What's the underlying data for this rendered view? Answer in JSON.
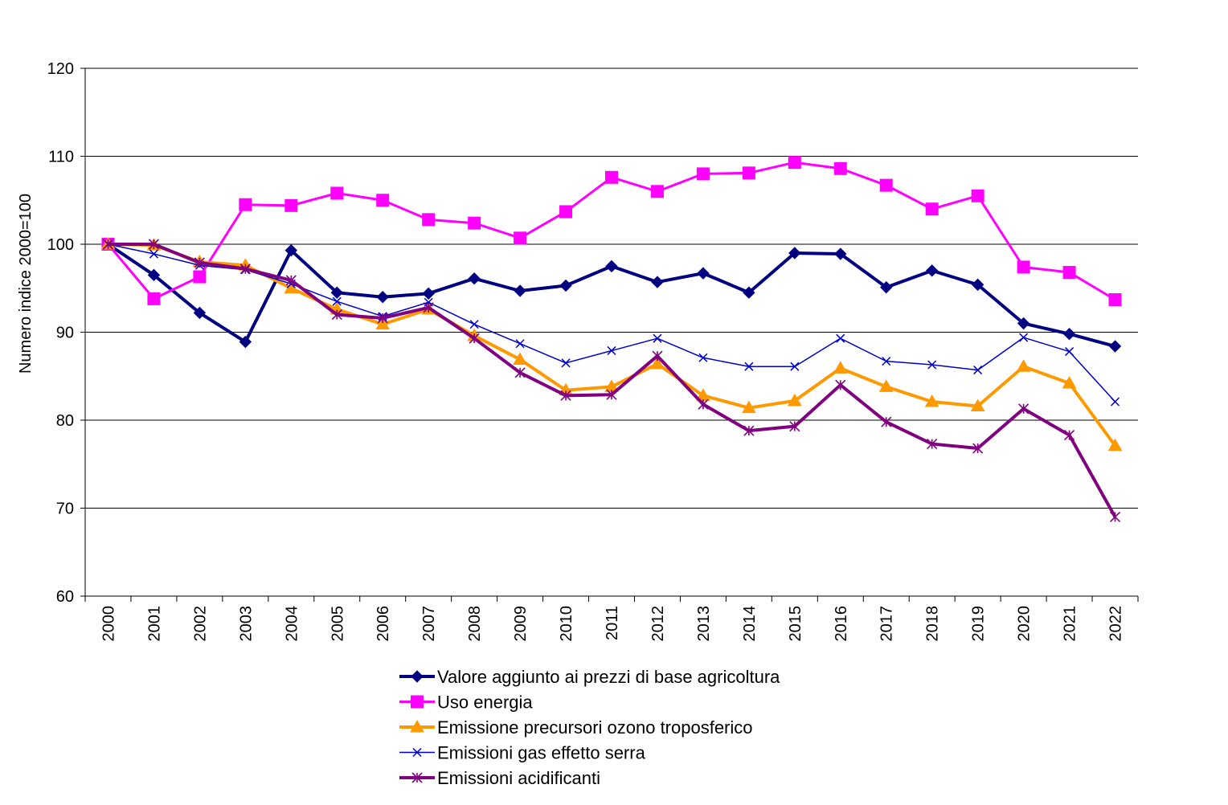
{
  "chart_data": {
    "type": "line",
    "title": "",
    "xlabel": "",
    "ylabel": "Numero indice 2000=100",
    "ylim": [
      60,
      120
    ],
    "yticks": [
      "60",
      "70",
      "80",
      "90",
      "100",
      "110",
      "120"
    ],
    "grid": "horizontal",
    "legend_position": "bottom",
    "categories": [
      "2000",
      "2001",
      "2002",
      "2003",
      "2004",
      "2005",
      "2006",
      "2007",
      "2008",
      "2009",
      "2010",
      "2011",
      "2012",
      "2013",
      "2014",
      "2015",
      "2016",
      "2017",
      "2018",
      "2019",
      "2020",
      "2021",
      "2022"
    ],
    "series": [
      {
        "name": "Valore aggiunto ai prezzi di base agricoltura",
        "color": "#000080",
        "marker": "diamond",
        "stroke": 4,
        "values": [
          100,
          96.5,
          92.2,
          88.9,
          99.3,
          94.5,
          94,
          94.4,
          96.1,
          94.7,
          95.3,
          97.5,
          95.7,
          96.7,
          94.5,
          99,
          98.9,
          95.1,
          97,
          95.4,
          91,
          89.8,
          88.4
        ]
      },
      {
        "name": "Uso energia",
        "color": "#FF00FF",
        "marker": "square",
        "stroke": 3,
        "values": [
          100,
          93.8,
          96.3,
          104.5,
          104.4,
          105.8,
          105,
          102.8,
          102.4,
          100.7,
          103.7,
          107.6,
          106,
          108,
          108.1,
          109.3,
          108.6,
          106.7,
          104,
          105.5,
          97.4,
          96.8,
          93.7
        ]
      },
      {
        "name": "Emissione precursori ozono troposferico",
        "color": "#FF9900",
        "marker": "triangle",
        "stroke": 4,
        "values": [
          100,
          99.9,
          98,
          97.6,
          95,
          92.6,
          90.9,
          92.6,
          89.6,
          86.9,
          83.4,
          83.8,
          86.4,
          82.8,
          81.4,
          82.2,
          85.9,
          83.8,
          82.1,
          81.6,
          86.1,
          84.2,
          77.1
        ]
      },
      {
        "name": "Emissioni gas effetto serra",
        "color": "#0000CC",
        "marker": "x",
        "stroke": 1.5,
        "values": [
          100,
          98.9,
          97.6,
          97.1,
          95.5,
          93.5,
          91.8,
          93.4,
          90.9,
          88.7,
          86.5,
          87.9,
          89.3,
          87.1,
          86.1,
          86.1,
          89.3,
          86.7,
          86.3,
          85.7,
          89.4,
          87.8,
          82.1
        ]
      },
      {
        "name": "Emissioni acidificanti",
        "color": "#800080",
        "marker": "asterisk",
        "stroke": 4,
        "values": [
          100,
          100,
          97.9,
          97.2,
          95.9,
          92,
          91.6,
          92.8,
          89.3,
          85.4,
          82.8,
          82.9,
          87.3,
          81.8,
          78.8,
          79.3,
          84,
          79.8,
          77.3,
          76.8,
          81.3,
          78.3,
          69
        ]
      }
    ]
  }
}
